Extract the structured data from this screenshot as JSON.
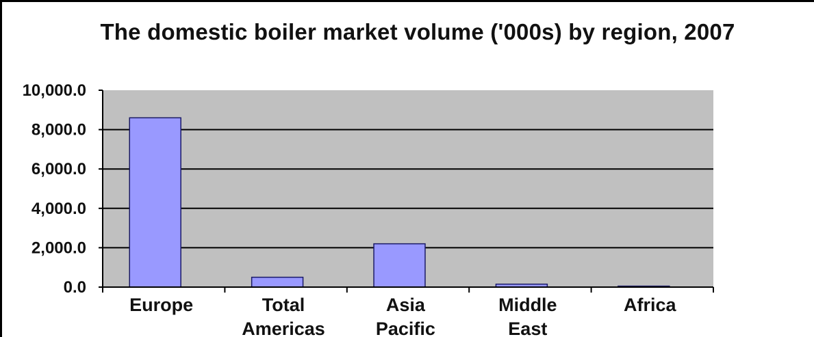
{
  "chart_data": {
    "type": "bar",
    "title": "The domestic boiler market volume ('000s) by region, 2007",
    "xlabel": "",
    "ylabel": "",
    "categories": [
      [
        "Europe"
      ],
      [
        "Total",
        "Americas"
      ],
      [
        "Asia",
        "Pacific"
      ],
      [
        "Middle",
        "East"
      ],
      [
        "Africa"
      ]
    ],
    "values": [
      8600,
      500,
      2200,
      150,
      50
    ],
    "ylim": [
      0,
      10000
    ],
    "yticks": [
      0,
      2000,
      4000,
      6000,
      8000,
      10000
    ],
    "ytick_labels": [
      "0.0",
      "2,000.0",
      "4,000.0",
      "6,000.0",
      "8,000.0",
      "10,000.0"
    ],
    "grid": true,
    "legend": "none",
    "colors": {
      "bar_fill": "#9999ff",
      "bar_stroke": "#1a1a66",
      "plot_background": "#c0c0c0",
      "grid_line": "#000000"
    }
  }
}
